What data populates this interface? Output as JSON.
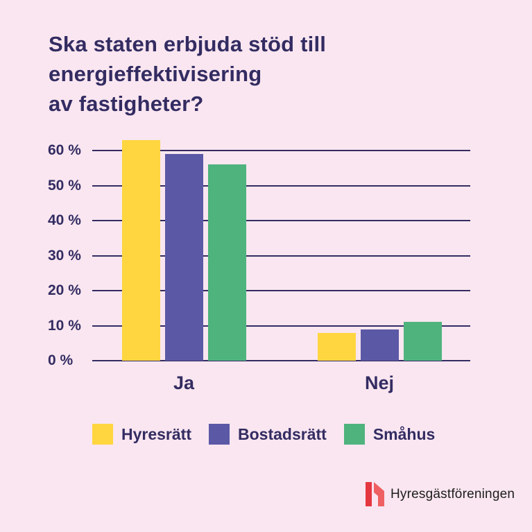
{
  "page": {
    "background": "#f9e6f0"
  },
  "title": {
    "text": "Ska staten erbjuda stöd till\nenergieffektivisering\nav fastigheter?",
    "color": "#332c62"
  },
  "chart_data": {
    "type": "bar",
    "title": "Ska staten erbjuda stöd till energieffektivisering av fastigheter?",
    "categories": [
      "Ja",
      "Nej"
    ],
    "series": [
      {
        "name": "Hyresrätt",
        "color": "#ffd640",
        "values": [
          63,
          8
        ]
      },
      {
        "name": "Bostadsrätt",
        "color": "#5b58a6",
        "values": [
          59,
          9
        ]
      },
      {
        "name": "Småhus",
        "color": "#4fb37e",
        "values": [
          56,
          11
        ]
      }
    ],
    "ylabel": "",
    "xlabel": "",
    "ylim": [
      0,
      60
    ],
    "ytick_step": 10,
    "ytick_labels": [
      "0 %",
      "10 %",
      "20 %",
      "30 %",
      "40 %",
      "50 %",
      "60 %"
    ],
    "grid": true,
    "axis_color": "#332c62",
    "legend_position": "bottom"
  },
  "footer": {
    "logo_text": "Hyresgästföreningen",
    "logo_colors": {
      "primary": "#e43740",
      "secondary": "#ef6062"
    },
    "text_color": "#1d1d1b"
  }
}
